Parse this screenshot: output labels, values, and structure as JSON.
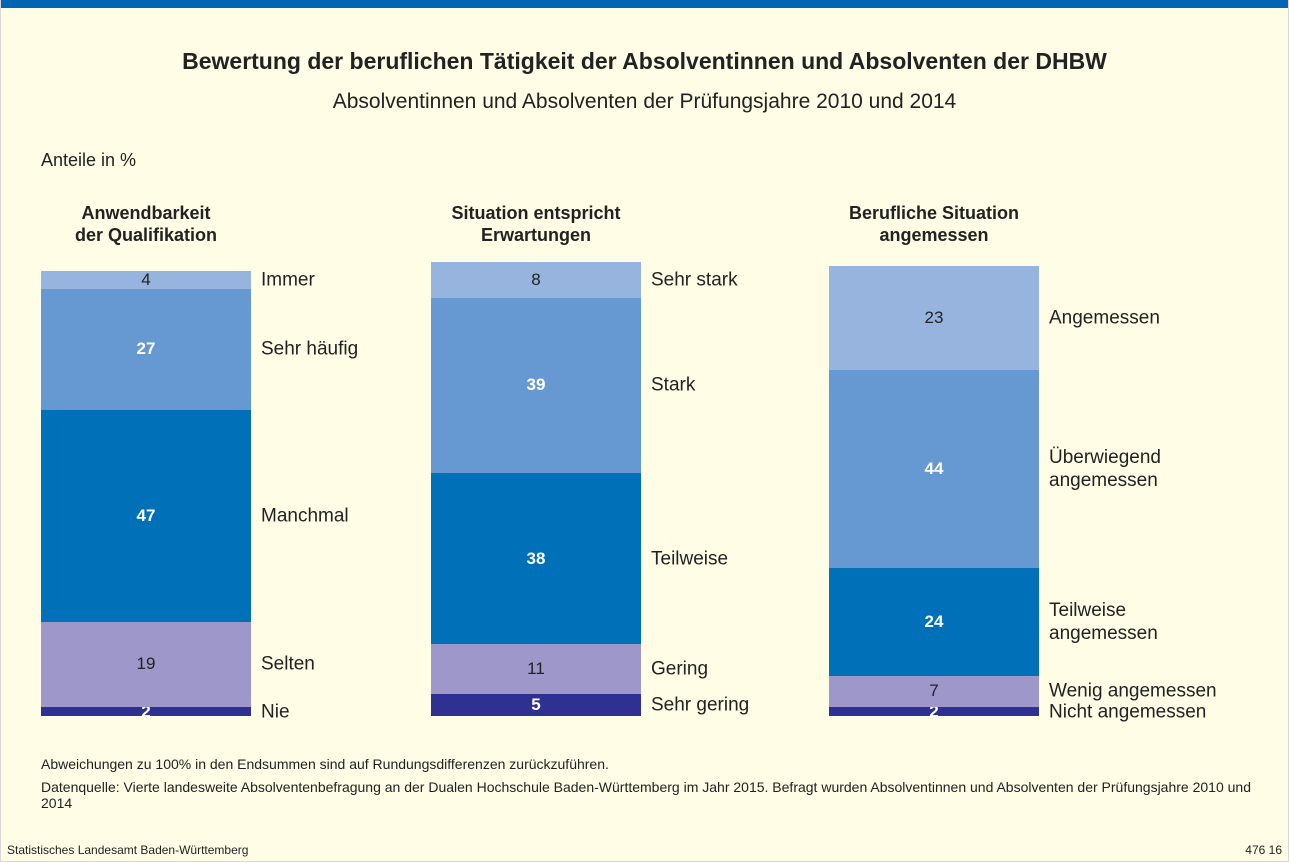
{
  "header": {
    "title": "Bewertung der beruflichen Tätigkeit der Absolventinnen und Absolventen der DHBW",
    "subtitle": "Absolventinnen und Absolventen der Prüfungsjahre 2010 und 2014",
    "unit": "Anteile in %"
  },
  "chart_data": [
    {
      "type": "stacked_bar",
      "title": "Anwendbarkeit\nder Qualifikation",
      "categories": [
        "Immer",
        "Sehr häufig",
        "Manchmal",
        "Selten",
        "Nie"
      ],
      "values": [
        4,
        27,
        47,
        19,
        2
      ],
      "colors": [
        "#96b4de",
        "#6699d1",
        "#0070b8",
        "#9e97c9",
        "#2e3192"
      ],
      "label_colors": [
        "#222222",
        "#ffffff",
        "#ffffff",
        "#222222",
        "#ffffff"
      ]
    },
    {
      "type": "stacked_bar",
      "title": "Situation entspricht\nErwartungen",
      "categories": [
        "Sehr stark",
        "Stark",
        "Teilweise",
        "Gering",
        "Sehr gering"
      ],
      "values": [
        8,
        39,
        38,
        11,
        5
      ],
      "colors": [
        "#96b4de",
        "#6699d1",
        "#0070b8",
        "#9e97c9",
        "#2e3192"
      ],
      "label_colors": [
        "#222222",
        "#ffffff",
        "#ffffff",
        "#222222",
        "#ffffff"
      ]
    },
    {
      "type": "stacked_bar",
      "title": "Berufliche Situation\nangemessen",
      "categories": [
        "Angemessen",
        "Überwiegend\nangemessen",
        "Teilweise\nangemessen",
        "Wenig angemessen",
        "Nicht angemessen"
      ],
      "values": [
        23,
        44,
        24,
        7,
        2
      ],
      "colors": [
        "#96b4de",
        "#6699d1",
        "#0070b8",
        "#9e97c9",
        "#2e3192"
      ],
      "label_colors": [
        "#222222",
        "#ffffff",
        "#ffffff",
        "#222222",
        "#ffffff"
      ]
    }
  ],
  "notes": [
    "Abweichungen zu 100% in den Endsummen sind auf Rundungsdifferenzen zurückzuführen.",
    "Datenquelle: Vierte landesweite Absolventenbefragung an der Dualen Hochschule Baden-Württemberg im Jahr 2015. Befragt wurden Absolventinnen und Absolventen der Prüfungsjahre 2010 und 2014"
  ],
  "footer": {
    "left": "Statistisches Landesamt Baden-Württemberg",
    "right": "476 16"
  }
}
